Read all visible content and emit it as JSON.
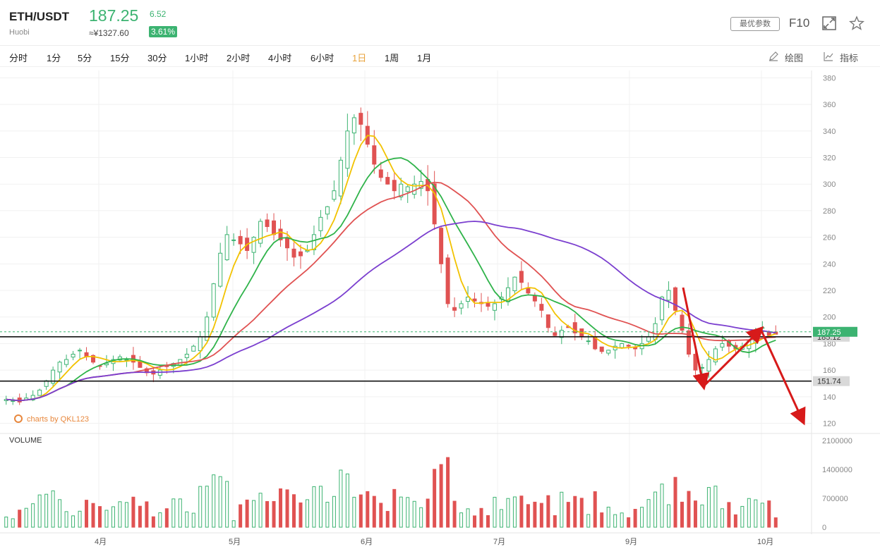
{
  "header": {
    "symbol": "ETH/USDT",
    "exchange": "Huobi",
    "price": "187.25",
    "price_cny": "≈¥1327.60",
    "change": "6.52",
    "change_pct": "3.61%",
    "param_button": "最优参数",
    "f10": "F10",
    "expand_icon": "expand-icon",
    "star_icon": "star-icon"
  },
  "toolbar": {
    "timeframes": [
      "分时",
      "1分",
      "5分",
      "15分",
      "30分",
      "1小时",
      "2小时",
      "4小时",
      "6小时",
      "1日",
      "1周",
      "1月"
    ],
    "active": "1日",
    "draw_label": "绘图",
    "indicator_label": "指标"
  },
  "watermark": "charts by QKL123",
  "volume_label": "VOLUME",
  "colors": {
    "up": "#3cb371",
    "down": "#e05252",
    "ma1": "#f2c200",
    "ma2": "#2fb34a",
    "ma3": "#e05252",
    "ma4": "#7b3fcf",
    "annotation": "#d71a1a",
    "active_tab": "#e8a33c"
  },
  "chart_data": {
    "type": "candlestick",
    "price_axis": {
      "ticks": [
        380,
        360,
        340,
        320,
        300,
        280,
        260,
        240,
        220,
        200,
        180,
        160,
        140,
        120
      ],
      "range": [
        120,
        380
      ]
    },
    "volume_axis": {
      "ticks": [
        "2100000",
        "1400000",
        "700000",
        "0"
      ],
      "range": [
        0,
        2100000
      ]
    },
    "x_labels": [
      "4月",
      "5月",
      "6月",
      "7月",
      "9月",
      "10月"
    ],
    "price_badge": "187.25",
    "horizontal_lines": [
      {
        "value": 185.12,
        "label": "185.12"
      },
      {
        "value": 151.74,
        "label": "151.74"
      }
    ],
    "series_close": [
      138,
      137,
      136,
      139,
      141,
      145,
      152,
      160,
      166,
      168,
      172,
      175,
      170,
      166,
      163,
      165,
      168,
      170,
      168,
      166,
      162,
      158,
      157,
      160,
      163,
      165,
      168,
      172,
      178,
      185,
      200,
      225,
      248,
      262,
      258,
      255,
      250,
      260,
      272,
      268,
      262,
      258,
      252,
      245,
      246,
      250,
      262,
      275,
      283,
      295,
      318,
      340,
      350,
      345,
      330,
      315,
      305,
      300,
      295,
      300,
      298,
      300,
      302,
      295,
      270,
      240,
      210,
      205,
      210,
      215,
      212,
      210,
      208,
      210,
      215,
      222,
      230,
      226,
      218,
      212,
      205,
      192,
      186,
      190,
      192,
      188,
      185,
      182,
      176,
      174,
      175,
      178,
      180,
      178,
      176,
      180,
      185,
      195,
      215,
      220,
      205,
      190,
      172,
      160,
      162,
      168,
      176,
      180,
      178,
      176,
      178,
      182,
      190,
      192,
      186,
      187
    ],
    "annotation_arrows": [
      {
        "from": [
          218,
          "09-12"
        ],
        "to": [
          150,
          "09-22"
        ]
      },
      {
        "from": [
          150,
          "09-22"
        ],
        "to": [
          194,
          "10-02"
        ]
      },
      {
        "from": [
          194,
          "10-02"
        ],
        "to": [
          124,
          "10-12"
        ]
      }
    ]
  }
}
